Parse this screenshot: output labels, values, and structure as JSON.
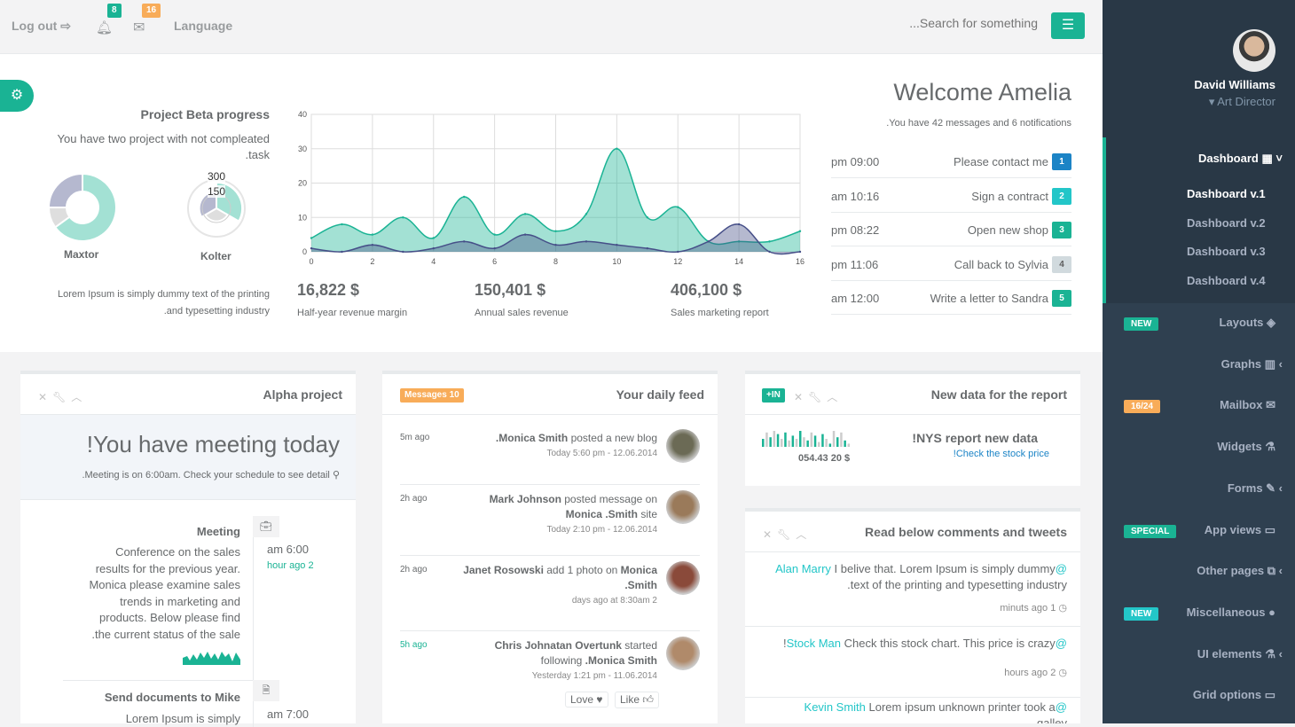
{
  "topbar": {
    "logout": "Log out",
    "notif_count": "8",
    "mail_count": "16",
    "language": "Language",
    "search_placeholder": "...Search for something"
  },
  "colors": {
    "primary": "#1ab394",
    "sidebar": "#2f4050",
    "warning": "#f8ac59",
    "info": "#23c6c8",
    "blue": "#1c84c6",
    "navy": "#464f88"
  },
  "project": {
    "title": "Project Beta progress",
    "subtitle": "You have two project with not compleated",
    "subtitle2": ".task",
    "donut1_label": "Maxtor",
    "donut1_values": [
      65,
      10,
      25
    ],
    "donut2_label": "Kolter",
    "donut2_values": [
      300,
      150,
      200
    ],
    "polar_ticks": [
      "300",
      "150"
    ],
    "desc1": "Lorem Ipsum is simply dummy text of the printing",
    "desc2": ".and typesetting industry"
  },
  "chart_data": {
    "type": "area",
    "x": [
      0,
      1,
      2,
      3,
      4,
      5,
      6,
      7,
      8,
      9,
      10,
      11,
      12,
      13,
      14,
      15,
      16
    ],
    "series": [
      {
        "values": [
          4,
          8,
          5,
          10,
          4,
          16,
          5,
          11,
          6,
          11,
          30,
          10,
          13,
          3,
          3,
          3,
          6
        ],
        "color": "#1ab394"
      },
      {
        "values": [
          1,
          0,
          2,
          0,
          1,
          3,
          1,
          5,
          2,
          3,
          2,
          1,
          0,
          3,
          8,
          0,
          0
        ],
        "color": "#464f88"
      }
    ],
    "xlim": [
      0,
      16
    ],
    "ylim": [
      0,
      40
    ],
    "xticks": [
      "0",
      "2",
      "4",
      "6",
      "8",
      "10",
      "12",
      "14",
      "16"
    ],
    "yticks": [
      "0",
      "10",
      "20",
      "30",
      "40"
    ],
    "grid": true
  },
  "stats": [
    {
      "value": "16,822 $",
      "label": "Half-year revenue margin"
    },
    {
      "value": "150,401 $",
      "label": "Annual sales revenue"
    },
    {
      "value": "406,100 $",
      "label": "Sales marketing report"
    }
  ],
  "welcome": {
    "title": "Welcome Amelia",
    "subtitle": ".You have 42 messages and 6 notifications"
  },
  "todos": [
    {
      "time": "pm 09:00",
      "text": "Please contact me",
      "n": "1",
      "color": "#1c84c6"
    },
    {
      "time": "am 10:16",
      "text": "Sign a contract",
      "n": "2",
      "color": "#23c6c8"
    },
    {
      "time": "pm 08:22",
      "text": "Open new shop",
      "n": "3",
      "color": "#1ab394"
    },
    {
      "time": "pm 11:06",
      "text": "Call back to Sylvia",
      "n": "4",
      "color": "#d1dade"
    },
    {
      "time": "am 12:00",
      "text": "Write a letter to Sandra",
      "n": "5",
      "color": "#1ab394"
    }
  ],
  "alpha": {
    "title": "Alpha project",
    "meeting_title": "!You have meeting today",
    "meeting_sub": ".Meeting is on 6:00am. Check your schedule to see detail",
    "items": [
      {
        "title": "Meeting",
        "text": "Conference on the sales results for the previous year. Monica please examine sales trends in marketing and products. Below please find .the current status of the sale",
        "time": "am 6:00",
        "ago": "hour ago 2"
      },
      {
        "title": "Send documents to Mike",
        "text": "Lorem Ipsum is simply",
        "time": "am 7:00"
      }
    ]
  },
  "feed": {
    "badge": "Messages 10",
    "title": "Your daily feed",
    "items": [
      {
        "ago": "5m ago",
        "segs": [
          {
            "b": ".Monica Smith"
          },
          {
            "t": " posted a new blog"
          }
        ],
        "date": "Today 5:60 pm - 12.06.2014"
      },
      {
        "ago": "2h ago",
        "segs": [
          {
            "b": "Mark Johnson"
          },
          {
            "t": " posted message on "
          },
          {
            "b": "Monica"
          },
          {
            "t": " "
          },
          {
            "b": ".Smith"
          },
          {
            "t": " site"
          }
        ],
        "date": "Today 2:10 pm - 12.06.2014"
      },
      {
        "ago": "2h ago",
        "segs": [
          {
            "b": "Janet Rosowski"
          },
          {
            "t": " add 1 photo on "
          },
          {
            "b": "Monica .Smith"
          }
        ],
        "date": "days ago at 8:30am 2"
      },
      {
        "ago": "5h ago",
        "segs": [
          {
            "b": "Chris Johnatan Overtunk"
          },
          {
            "t": " started following "
          },
          {
            "b": ".Monica Smith"
          }
        ],
        "date": "Yesterday 1:21 pm - 11.06.2014"
      }
    ],
    "love": "Love",
    "like": "Like"
  },
  "report": {
    "badge": "+IN",
    "title": "New data for the report",
    "value": "054.43 20 $",
    "headline": "!NYS report new data",
    "link": "!Check the stock price",
    "bars": [
      5,
      9,
      6,
      10,
      8,
      5,
      9,
      4,
      7,
      5,
      10,
      6,
      4,
      9,
      7,
      3,
      8,
      5,
      2,
      10,
      6,
      9,
      4,
      2
    ]
  },
  "tweets": {
    "title": "Read below comments and tweets",
    "items": [
      {
        "user": "Alan Marry",
        "text": " I belive that. Lorem Ipsum is simply dummy",
        "text2": ".text of the printing and typesetting industry",
        "ago": "minuts ago 1"
      },
      {
        "pre": "!",
        "user": "Stock Man",
        "text": " Check this stock chart. This price is crazy",
        "ago": "hours ago 2"
      },
      {
        "user": "Kevin Smith",
        "text": " Lorem ipsum unknown printer took a",
        "text2": "galley"
      }
    ]
  },
  "profile": {
    "name": "David Williams",
    "role": "Art Director"
  },
  "sidebar": {
    "dashboard": "Dashboard",
    "subs": [
      "Dashboard v.1",
      "Dashboard v.2",
      "Dashboard v.3",
      "Dashboard v.4"
    ],
    "items": [
      {
        "label": "Layouts",
        "icon": "◈",
        "badge": "NEW",
        "badge_color": "#1ab394"
      },
      {
        "label": "Graphs",
        "icon": "▥",
        "arrow": true
      },
      {
        "label": "Mailbox",
        "icon": "✉",
        "badge": "16/24",
        "badge_color": "#f8ac59"
      },
      {
        "label": "Widgets",
        "icon": "⚗"
      },
      {
        "label": "Forms",
        "icon": "✎",
        "arrow": true
      },
      {
        "label": "App views",
        "icon": "▭",
        "badge": "SPECIAL",
        "badge_color": "#1ab394"
      },
      {
        "label": "Other pages",
        "icon": "⧉",
        "arrow": true
      },
      {
        "label": "Miscellaneous",
        "icon": "●",
        "badge": "NEW",
        "badge_color": "#23c6c8"
      },
      {
        "label": "UI elements",
        "icon": "⚗",
        "arrow": true
      },
      {
        "label": "Grid options",
        "icon": "▭"
      }
    ]
  }
}
